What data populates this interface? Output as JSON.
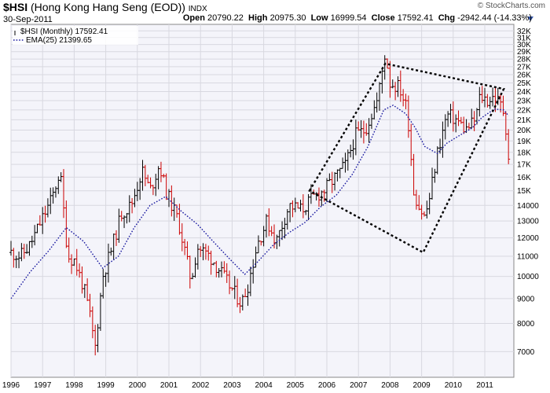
{
  "header": {
    "symbol": "$HSI",
    "name": "(Hong Kong Hang Seng (EOD))",
    "exchange": "INDX",
    "date": "30-Sep-2011",
    "open_label": "Open",
    "open": "20790.22",
    "high_label": "High",
    "high": "20975.30",
    "low_label": "Low",
    "low": "16999.54",
    "close_label": "Close",
    "close": "17592.41",
    "chg_label": "Chg",
    "chg": "-2942.44 (-14.33%)",
    "brand": "© StockCharts.com"
  },
  "legend": {
    "main": "$HSI (Monthly) 17592.41",
    "ema": "EMA(25) 21399.65"
  },
  "colors": {
    "up": "#000000",
    "down": "#cc0000",
    "ema": "#1a1aa0",
    "pattern": "#000000",
    "grid": "#d8d8e0",
    "plot_bg": "#f4f4fa",
    "arrow": "#3355aa"
  },
  "chart_data": {
    "type": "ohlc",
    "scale": "log",
    "ylim": [
      6200,
      33000
    ],
    "xlim": [
      1996.0,
      2011.92
    ],
    "y_ticks": [
      "7000",
      "8000",
      "9000",
      "10000",
      "11000",
      "12000",
      "13000",
      "14000",
      "15K",
      "16K",
      "17K",
      "18K",
      "19K",
      "20K",
      "21K",
      "22K",
      "23K",
      "24K",
      "25K",
      "26K",
      "27K",
      "28K",
      "29K",
      "30K",
      "31K",
      "32K"
    ],
    "x_ticks": [
      "1996",
      "1997",
      "1998",
      "1999",
      "2000",
      "2001",
      "2002",
      "2003",
      "2004",
      "2005",
      "2006",
      "2007",
      "2008",
      "2009",
      "2010",
      "2011"
    ],
    "series": [
      {
        "name": "$HSI (Monthly)",
        "anchors": [
          [
            1996.0,
            11200
          ],
          [
            1996.3,
            11000
          ],
          [
            1996.6,
            11600
          ],
          [
            1997.0,
            13200
          ],
          [
            1997.3,
            14500
          ],
          [
            1997.55,
            16500
          ],
          [
            1997.8,
            11000
          ],
          [
            1998.0,
            10800
          ],
          [
            1998.3,
            9500
          ],
          [
            1998.55,
            8000
          ],
          [
            1998.65,
            7000
          ],
          [
            1998.9,
            10000
          ],
          [
            1999.2,
            11500
          ],
          [
            1999.5,
            13500
          ],
          [
            1999.8,
            14000
          ],
          [
            2000.15,
            16500
          ],
          [
            2000.4,
            15000
          ],
          [
            2000.7,
            17000
          ],
          [
            2000.9,
            15000
          ],
          [
            2001.3,
            13000
          ],
          [
            2001.7,
            9800
          ],
          [
            2001.9,
            11500
          ],
          [
            2002.3,
            11000
          ],
          [
            2002.6,
            10300
          ],
          [
            2002.9,
            9600
          ],
          [
            2003.3,
            8800
          ],
          [
            2003.5,
            9600
          ],
          [
            2003.8,
            11700
          ],
          [
            2004.1,
            13000
          ],
          [
            2004.4,
            11800
          ],
          [
            2004.8,
            14000
          ],
          [
            2005.2,
            13700
          ],
          [
            2005.6,
            14600
          ],
          [
            2005.9,
            15000
          ],
          [
            2006.2,
            15800
          ],
          [
            2006.6,
            17000
          ],
          [
            2006.9,
            19500
          ],
          [
            2007.2,
            20000
          ],
          [
            2007.6,
            23000
          ],
          [
            2007.85,
            29000
          ],
          [
            2008.0,
            25000
          ],
          [
            2008.3,
            24500
          ],
          [
            2008.55,
            22000
          ],
          [
            2008.75,
            15000
          ],
          [
            2008.9,
            14000
          ],
          [
            2009.1,
            13200
          ],
          [
            2009.25,
            14500
          ],
          [
            2009.5,
            18000
          ],
          [
            2009.8,
            21500
          ],
          [
            2010.1,
            21000
          ],
          [
            2010.4,
            20000
          ],
          [
            2010.7,
            21000
          ],
          [
            2010.85,
            23500
          ],
          [
            2011.1,
            23000
          ],
          [
            2011.3,
            23500
          ],
          [
            2011.5,
            22500
          ],
          [
            2011.6,
            21800
          ],
          [
            2011.7,
            19500
          ],
          [
            2011.75,
            17592
          ]
        ],
        "last": 17592.41
      },
      {
        "name": "EMA(25)",
        "points": [
          [
            1996.0,
            9000
          ],
          [
            1996.6,
            10200
          ],
          [
            1997.2,
            11300
          ],
          [
            1997.75,
            12600
          ],
          [
            1998.3,
            11800
          ],
          [
            1998.9,
            10400
          ],
          [
            1999.4,
            11000
          ],
          [
            1999.9,
            12600
          ],
          [
            2000.4,
            14000
          ],
          [
            2000.9,
            14600
          ],
          [
            2001.4,
            13600
          ],
          [
            2001.9,
            12800
          ],
          [
            2002.4,
            11800
          ],
          [
            2002.9,
            10900
          ],
          [
            2003.4,
            10100
          ],
          [
            2003.8,
            10700
          ],
          [
            2004.3,
            11600
          ],
          [
            2004.8,
            12300
          ],
          [
            2005.3,
            12900
          ],
          [
            2005.8,
            13900
          ],
          [
            2006.3,
            14700
          ],
          [
            2006.8,
            16200
          ],
          [
            2007.3,
            18500
          ],
          [
            2007.8,
            22000
          ],
          [
            2008.1,
            22500
          ],
          [
            2008.5,
            21600
          ],
          [
            2008.8,
            20200
          ],
          [
            2009.1,
            18500
          ],
          [
            2009.5,
            17900
          ],
          [
            2009.8,
            18800
          ],
          [
            2010.2,
            19500
          ],
          [
            2010.6,
            20200
          ],
          [
            2010.9,
            21200
          ],
          [
            2011.3,
            22100
          ],
          [
            2011.6,
            22000
          ],
          [
            2011.75,
            21399.65
          ]
        ],
        "last": 21399.65
      }
    ],
    "annotations": [
      {
        "type": "polygon",
        "style": "dotted",
        "points": [
          [
            2005.45,
            15000
          ],
          [
            2007.85,
            27400
          ],
          [
            2011.6,
            24300
          ],
          [
            2009.05,
            11200
          ]
        ]
      }
    ]
  }
}
